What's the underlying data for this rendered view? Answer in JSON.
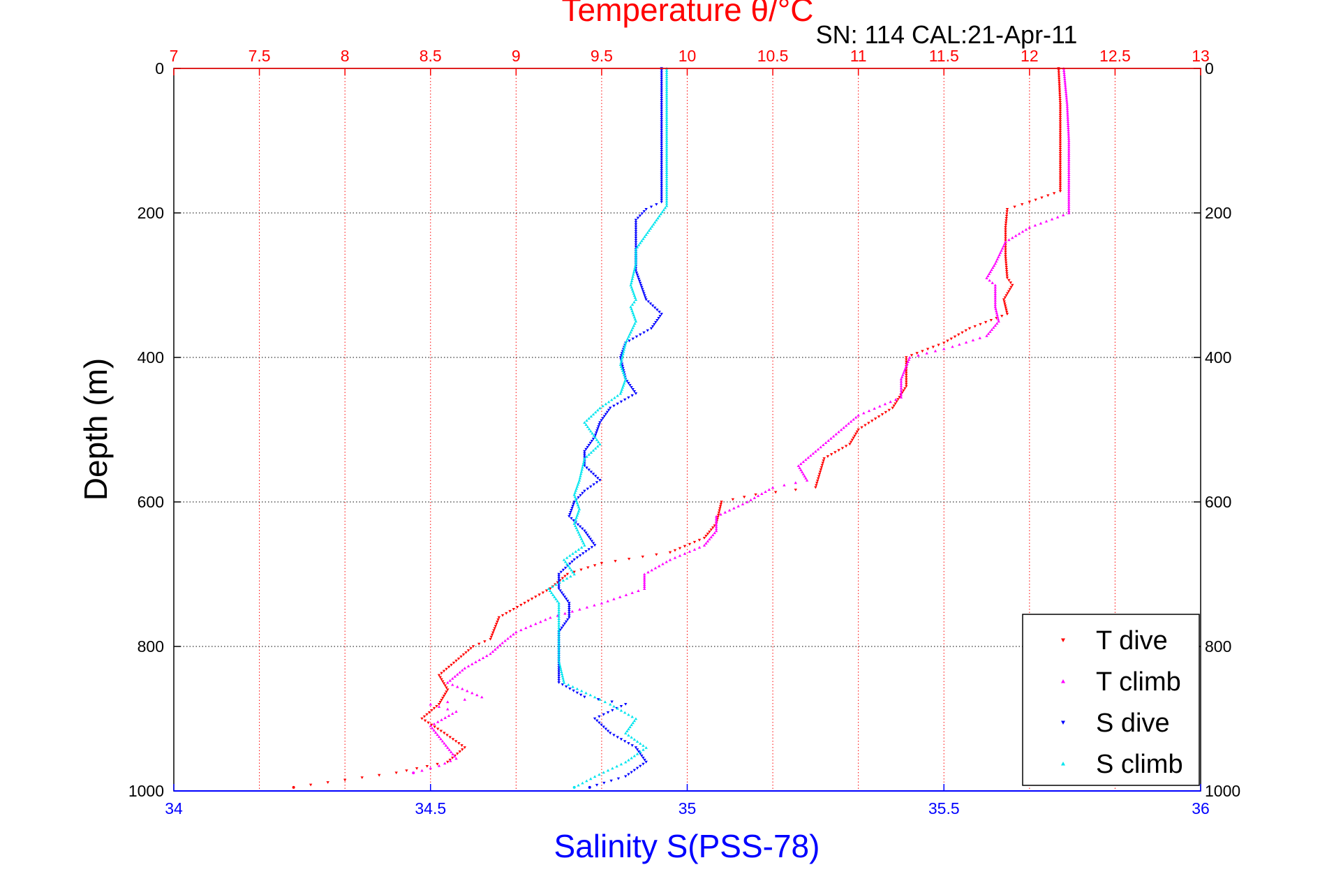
{
  "chart_data": {
    "type": "scatter",
    "title": "",
    "annotation": "SN: 114  CAL:21-Apr-11",
    "top_axis": {
      "label": "Temperature θ/°C",
      "range": [
        7,
        13
      ],
      "ticks": [
        "7",
        "7.5",
        "8",
        "8.5",
        "9",
        "9.5",
        "10",
        "10.5",
        "11",
        "11.5",
        "12",
        "12.5",
        "13"
      ],
      "color": "#ff0000"
    },
    "bottom_axis": {
      "label": "Salinity S(PSS-78)",
      "range": [
        34,
        36
      ],
      "ticks": [
        "34",
        "34.5",
        "35",
        "35.5",
        "36"
      ],
      "color": "#0000ff"
    },
    "y_axis": {
      "label": "Depth (m)",
      "range": [
        0,
        1000
      ],
      "inverted": true,
      "ticks": [
        "0",
        "200",
        "400",
        "600",
        "800",
        "1000"
      ]
    },
    "grid": true,
    "legend_position": "bottom-right",
    "series": [
      {
        "name": "T dive",
        "axis": "temperature",
        "color": "#ff0000",
        "points": [
          [
            12.17,
            0
          ],
          [
            12.18,
            50
          ],
          [
            12.18,
            100
          ],
          [
            12.18,
            150
          ],
          [
            12.18,
            170
          ],
          [
            12.0,
            185
          ],
          [
            11.87,
            195
          ],
          [
            11.86,
            220
          ],
          [
            11.86,
            260
          ],
          [
            11.87,
            290
          ],
          [
            11.9,
            300
          ],
          [
            11.85,
            320
          ],
          [
            11.87,
            340
          ],
          [
            11.65,
            360
          ],
          [
            11.5,
            380
          ],
          [
            11.28,
            400
          ],
          [
            11.28,
            440
          ],
          [
            11.2,
            470
          ],
          [
            11.0,
            500
          ],
          [
            10.95,
            520
          ],
          [
            10.8,
            540
          ],
          [
            10.75,
            580
          ],
          [
            10.4,
            590
          ],
          [
            10.2,
            600
          ],
          [
            10.17,
            630
          ],
          [
            10.1,
            650
          ],
          [
            9.9,
            670
          ],
          [
            9.5,
            685
          ],
          [
            9.3,
            700
          ],
          [
            9.2,
            720
          ],
          [
            9.05,
            740
          ],
          [
            8.9,
            760
          ],
          [
            8.85,
            790
          ],
          [
            8.75,
            800
          ],
          [
            8.65,
            820
          ],
          [
            8.55,
            840
          ],
          [
            8.6,
            860
          ],
          [
            8.55,
            880
          ],
          [
            8.45,
            900
          ],
          [
            8.58,
            920
          ],
          [
            8.7,
            940
          ],
          [
            8.6,
            960
          ],
          [
            8.3,
            975
          ],
          [
            8.0,
            985
          ],
          [
            7.7,
            995
          ]
        ]
      },
      {
        "name": "T climb",
        "axis": "temperature",
        "color": "#ff00ff",
        "points": [
          [
            12.2,
            0
          ],
          [
            12.22,
            50
          ],
          [
            12.23,
            100
          ],
          [
            12.23,
            150
          ],
          [
            12.23,
            200
          ],
          [
            12.0,
            220
          ],
          [
            11.86,
            240
          ],
          [
            11.8,
            270
          ],
          [
            11.75,
            290
          ],
          [
            11.8,
            300
          ],
          [
            11.8,
            330
          ],
          [
            11.82,
            350
          ],
          [
            11.75,
            370
          ],
          [
            11.55,
            385
          ],
          [
            11.3,
            400
          ],
          [
            11.25,
            430
          ],
          [
            11.25,
            455
          ],
          [
            11.0,
            480
          ],
          [
            10.9,
            500
          ],
          [
            10.75,
            530
          ],
          [
            10.65,
            550
          ],
          [
            10.7,
            570
          ],
          [
            10.5,
            580
          ],
          [
            10.35,
            600
          ],
          [
            10.17,
            620
          ],
          [
            10.17,
            640
          ],
          [
            10.1,
            660
          ],
          [
            9.9,
            680
          ],
          [
            9.75,
            700
          ],
          [
            9.75,
            720
          ],
          [
            9.5,
            740
          ],
          [
            9.2,
            760
          ],
          [
            9.0,
            780
          ],
          [
            8.92,
            795
          ],
          [
            8.85,
            810
          ],
          [
            8.7,
            830
          ],
          [
            8.6,
            850
          ],
          [
            8.8,
            870
          ],
          [
            8.5,
            880
          ],
          [
            8.65,
            890
          ],
          [
            8.5,
            910
          ],
          [
            8.6,
            940
          ],
          [
            8.65,
            955
          ],
          [
            8.55,
            965
          ],
          [
            8.4,
            975
          ]
        ]
      },
      {
        "name": "S dive",
        "axis": "salinity",
        "color": "#0000ff",
        "points": [
          [
            34.95,
            0
          ],
          [
            34.95,
            50
          ],
          [
            34.95,
            100
          ],
          [
            34.95,
            150
          ],
          [
            34.95,
            185
          ],
          [
            34.92,
            195
          ],
          [
            34.9,
            210
          ],
          [
            34.9,
            250
          ],
          [
            34.9,
            280
          ],
          [
            34.91,
            300
          ],
          [
            34.92,
            320
          ],
          [
            34.95,
            340
          ],
          [
            34.93,
            360
          ],
          [
            34.88,
            380
          ],
          [
            34.87,
            400
          ],
          [
            34.88,
            430
          ],
          [
            34.9,
            450
          ],
          [
            34.85,
            470
          ],
          [
            34.83,
            490
          ],
          [
            34.82,
            510
          ],
          [
            34.8,
            530
          ],
          [
            34.8,
            550
          ],
          [
            34.83,
            570
          ],
          [
            34.8,
            585
          ],
          [
            34.78,
            600
          ],
          [
            34.77,
            620
          ],
          [
            34.8,
            640
          ],
          [
            34.82,
            660
          ],
          [
            34.78,
            680
          ],
          [
            34.75,
            700
          ],
          [
            34.75,
            720
          ],
          [
            34.77,
            740
          ],
          [
            34.77,
            760
          ],
          [
            34.75,
            780
          ],
          [
            34.75,
            820
          ],
          [
            34.75,
            850
          ],
          [
            34.8,
            870
          ],
          [
            34.88,
            880
          ],
          [
            34.82,
            900
          ],
          [
            34.85,
            920
          ],
          [
            34.9,
            940
          ],
          [
            34.92,
            960
          ],
          [
            34.88,
            980
          ],
          [
            34.81,
            995
          ]
        ]
      },
      {
        "name": "S climb",
        "axis": "salinity",
        "color": "#00e5ee",
        "points": [
          [
            34.96,
            0
          ],
          [
            34.96,
            50
          ],
          [
            34.96,
            100
          ],
          [
            34.96,
            150
          ],
          [
            34.96,
            190
          ],
          [
            34.94,
            210
          ],
          [
            34.92,
            230
          ],
          [
            34.9,
            250
          ],
          [
            34.9,
            270
          ],
          [
            34.89,
            300
          ],
          [
            34.9,
            320
          ],
          [
            34.89,
            330
          ],
          [
            34.9,
            350
          ],
          [
            34.88,
            380
          ],
          [
            34.87,
            410
          ],
          [
            34.88,
            430
          ],
          [
            34.87,
            450
          ],
          [
            34.83,
            470
          ],
          [
            34.8,
            490
          ],
          [
            34.83,
            520
          ],
          [
            34.8,
            540
          ],
          [
            34.79,
            570
          ],
          [
            34.78,
            590
          ],
          [
            34.79,
            610
          ],
          [
            34.78,
            630
          ],
          [
            34.8,
            660
          ],
          [
            34.76,
            680
          ],
          [
            34.78,
            700
          ],
          [
            34.73,
            720
          ],
          [
            34.75,
            740
          ],
          [
            34.75,
            780
          ],
          [
            34.75,
            820
          ],
          [
            34.76,
            850
          ],
          [
            34.82,
            870
          ],
          [
            34.85,
            880
          ],
          [
            34.9,
            900
          ],
          [
            34.88,
            920
          ],
          [
            34.92,
            940
          ],
          [
            34.88,
            960
          ],
          [
            34.82,
            980
          ],
          [
            34.78,
            995
          ]
        ]
      }
    ]
  }
}
